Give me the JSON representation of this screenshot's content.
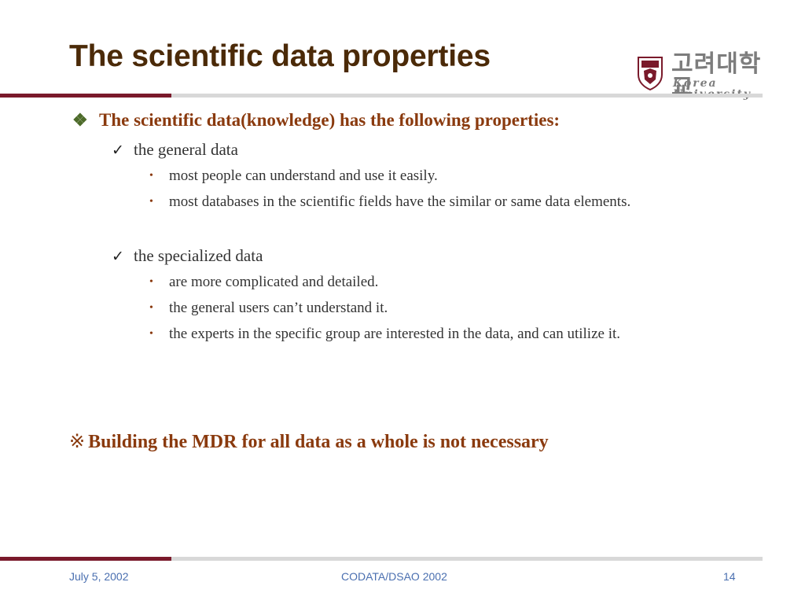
{
  "slide": {
    "title": "The scientific data properties"
  },
  "logo": {
    "korean": "고려대학교",
    "english": "Korea University"
  },
  "content": {
    "heading": "The scientific data(knowledge) has the following properties:",
    "heading_bullet": "❖",
    "check_bullet": "✓",
    "dot_bullet": "•",
    "groups": [
      {
        "label": "the general data",
        "items": [
          "most people can understand and use it easily.",
          "most databases in the scientific fields have the similar or same data elements."
        ]
      },
      {
        "label": "the specialized data",
        "items": [
          "are more complicated and detailed.",
          "the general users can’t understand it.",
          "the experts in the specific group are interested in the data, and can utilize it."
        ]
      }
    ],
    "conclusion_mark": "※",
    "conclusion": "Building the MDR for all data as a whole is not necessary"
  },
  "footer": {
    "date": "July 5, 2002",
    "event": "CODATA/DSAO 2002",
    "page": "14"
  },
  "colors": {
    "title": "#4b2a08",
    "accent": "#8a3a0e",
    "rule_dark": "#7a1a2b",
    "rule_light": "#d8d8d8",
    "footer": "#4a6fb0"
  }
}
